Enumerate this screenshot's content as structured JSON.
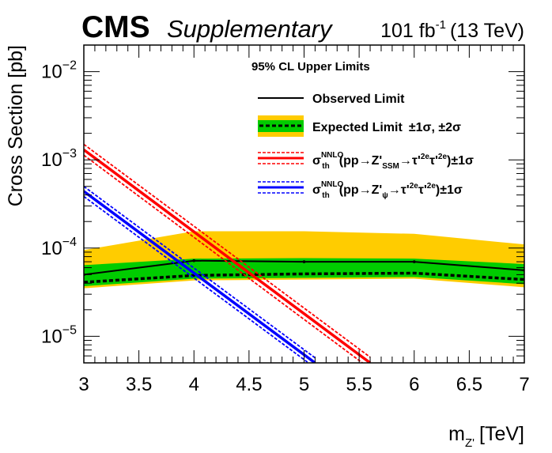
{
  "header": {
    "experiment": "CMS",
    "tag": "Supplementary",
    "lumi_value": "101 fb",
    "lumi_exp": "-1",
    "energy": "(13 TeV)"
  },
  "legend": {
    "title": "95% CL Upper Limits",
    "observed": "Observed Limit",
    "expected": "Expected Limit",
    "expected_bands": "±1σ,  ±2σ",
    "ssm": {
      "sigma": "σ",
      "sup": "NNLO",
      "sub": "th",
      "proc1": "(pp→Z'",
      "boson_sub": "SSM",
      "proc2": "→τ'",
      "tau_sup": "2e",
      "proc3": "τ'",
      "tail": ")±1σ"
    },
    "psi": {
      "sigma": "σ",
      "sup": "NNLO",
      "sub": "th",
      "proc1": "(pp→Z'",
      "boson_sub": "ψ",
      "proc2": "→τ'",
      "tau_sup": "2e",
      "proc3": "τ'",
      "tail": ")±1σ"
    }
  },
  "colors": {
    "observed": "#000000",
    "expected": "#000000",
    "band1": "#00cc00",
    "band2": "#ffcc00",
    "ssm": "#ff0000",
    "psi": "#0000ff"
  },
  "chart_data": {
    "type": "line",
    "title": "",
    "xlabel": "m",
    "xlabel_sub": "Z'",
    "xlabel_unit": "[TeV]",
    "ylabel": "Cross Section [pb]",
    "xlim": [
      3,
      7
    ],
    "ylim": [
      5e-06,
      0.02
    ],
    "yscale": "log",
    "x_ticks": [
      "3",
      "3.5",
      "4",
      "4.5",
      "5",
      "5.5",
      "6",
      "6.5",
      "7"
    ],
    "y_ticks": [
      {
        "base": "10",
        "exp": "−5",
        "value": 1e-05
      },
      {
        "base": "10",
        "exp": "−4",
        "value": 0.0001
      },
      {
        "base": "10",
        "exp": "−3",
        "value": 0.001
      },
      {
        "base": "10",
        "exp": "−2",
        "value": 0.01
      }
    ],
    "x": [
      3,
      4,
      5,
      6,
      7
    ],
    "series": [
      {
        "name": "Observed Limit",
        "style": "solid",
        "values": [
          5e-05,
          7.2e-05,
          7e-05,
          7e-05,
          5.6e-05
        ]
      },
      {
        "name": "Expected Limit",
        "style": "dotted",
        "values": [
          4.1e-05,
          4.9e-05,
          5.1e-05,
          5.2e-05,
          4.4e-05
        ]
      }
    ],
    "band_1sigma": {
      "lower": [
        3.7e-05,
        4.5e-05,
        4.6e-05,
        4.7e-05,
        3.9e-05
      ],
      "upper": [
        6.4e-05,
        7.6e-05,
        7.7e-05,
        7.6e-05,
        6.6e-05
      ]
    },
    "band_2sigma": {
      "lower": [
        3.5e-05,
        4.3e-05,
        4.4e-05,
        4.5e-05,
        3.6e-05
      ],
      "upper": [
        9.5e-05,
        0.000155,
        0.000155,
        0.000145,
        0.00011
      ]
    },
    "theory": [
      {
        "name": "SSM",
        "x": [
          3.0,
          5.6
        ],
        "central": [
          0.0013,
          5e-06
        ],
        "plus": [
          0.0015,
          5.8e-06
        ],
        "minus": [
          0.00113,
          4.3e-06
        ]
      },
      {
        "name": "psi",
        "x": [
          3.0,
          5.1
        ],
        "central": [
          0.00044,
          5e-06
        ],
        "plus": [
          0.0005,
          5.7e-06
        ],
        "minus": [
          0.000385,
          4.4e-06
        ]
      }
    ]
  }
}
